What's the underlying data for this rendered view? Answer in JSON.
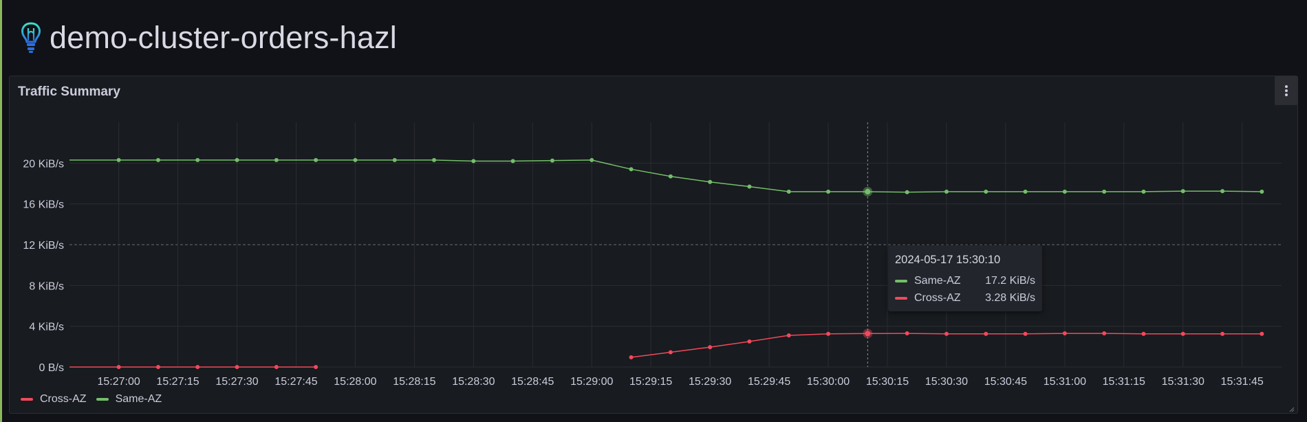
{
  "dashboard": {
    "title": "demo-cluster-orders-hazl"
  },
  "panel": {
    "title": "Traffic Summary"
  },
  "colors": {
    "same_az": "#73bf69",
    "cross_az": "#f2495c"
  },
  "legend": [
    {
      "name": "Cross-AZ",
      "color": "#f2495c"
    },
    {
      "name": "Same-AZ",
      "color": "#73bf69"
    }
  ],
  "tooltip": {
    "time": "2024-05-17 15:30:10",
    "rows": [
      {
        "name": "Same-AZ",
        "value": "17.2 KiB/s",
        "color": "#73bf69"
      },
      {
        "name": "Cross-AZ",
        "value": "3.28 KiB/s",
        "color": "#f2495c"
      }
    ]
  },
  "chart_data": {
    "type": "line",
    "title": "Traffic Summary",
    "y_unit": "KiB/s",
    "ylim": [
      0,
      24
    ],
    "y_ticks": [
      {
        "value": 0,
        "label": "0 B/s"
      },
      {
        "value": 4,
        "label": "4 KiB/s"
      },
      {
        "value": 8,
        "label": "8 KiB/s"
      },
      {
        "value": 12,
        "label": "12 KiB/s"
      },
      {
        "value": 16,
        "label": "16 KiB/s"
      },
      {
        "value": 20,
        "label": "20 KiB/s"
      }
    ],
    "x_ticks": [
      "15:27:00",
      "15:27:15",
      "15:27:30",
      "15:27:45",
      "15:28:00",
      "15:28:15",
      "15:28:30",
      "15:28:45",
      "15:29:00",
      "15:29:15",
      "15:29:30",
      "15:29:45",
      "15:30:00",
      "15:30:15",
      "15:30:30",
      "15:30:45",
      "15:31:00",
      "15:31:15",
      "15:31:30",
      "15:31:45"
    ],
    "x_tick_seconds": [
      0,
      15,
      30,
      45,
      60,
      75,
      90,
      105,
      120,
      135,
      150,
      165,
      180,
      195,
      210,
      225,
      240,
      255,
      270,
      285
    ],
    "x_range_seconds": [
      -12.5,
      295
    ],
    "grid": true,
    "legend_position": "bottom-left",
    "hover_time_seconds": 190,
    "series": [
      {
        "name": "Same-AZ",
        "color": "#73bf69",
        "points": [
          [
            -12.5,
            20.3
          ],
          [
            0,
            20.3
          ],
          [
            10,
            20.3
          ],
          [
            20,
            20.3
          ],
          [
            30,
            20.3
          ],
          [
            40,
            20.3
          ],
          [
            50,
            20.3
          ],
          [
            60,
            20.3
          ],
          [
            70,
            20.3
          ],
          [
            80,
            20.3
          ],
          [
            90,
            20.2
          ],
          [
            100,
            20.2
          ],
          [
            110,
            20.25
          ],
          [
            120,
            20.3
          ],
          [
            130,
            19.4
          ],
          [
            140,
            18.7
          ],
          [
            150,
            18.15
          ],
          [
            160,
            17.7
          ],
          [
            170,
            17.2
          ],
          [
            180,
            17.2
          ],
          [
            190,
            17.2
          ],
          [
            200,
            17.15
          ],
          [
            210,
            17.2
          ],
          [
            220,
            17.2
          ],
          [
            230,
            17.2
          ],
          [
            240,
            17.2
          ],
          [
            250,
            17.2
          ],
          [
            260,
            17.2
          ],
          [
            270,
            17.25
          ],
          [
            280,
            17.25
          ],
          [
            290,
            17.2
          ]
        ],
        "hover_point": [
          190,
          17.2
        ]
      },
      {
        "name": "Cross-AZ",
        "color": "#f2495c",
        "segments": [
          [
            [
              -12.5,
              0
            ],
            [
              0,
              0
            ],
            [
              10,
              0
            ],
            [
              20,
              0
            ],
            [
              30,
              0
            ],
            [
              40,
              0
            ],
            [
              50,
              0
            ]
          ],
          [
            [
              130,
              0.95
            ],
            [
              140,
              1.45
            ],
            [
              150,
              1.95
            ],
            [
              160,
              2.5
            ],
            [
              170,
              3.1
            ],
            [
              180,
              3.25
            ],
            [
              190,
              3.28
            ],
            [
              200,
              3.3
            ],
            [
              210,
              3.25
            ],
            [
              220,
              3.25
            ],
            [
              230,
              3.25
            ],
            [
              240,
              3.3
            ],
            [
              250,
              3.3
            ],
            [
              260,
              3.25
            ],
            [
              270,
              3.25
            ],
            [
              280,
              3.25
            ],
            [
              290,
              3.25
            ]
          ]
        ],
        "hover_point": [
          190,
          3.28
        ]
      }
    ]
  }
}
